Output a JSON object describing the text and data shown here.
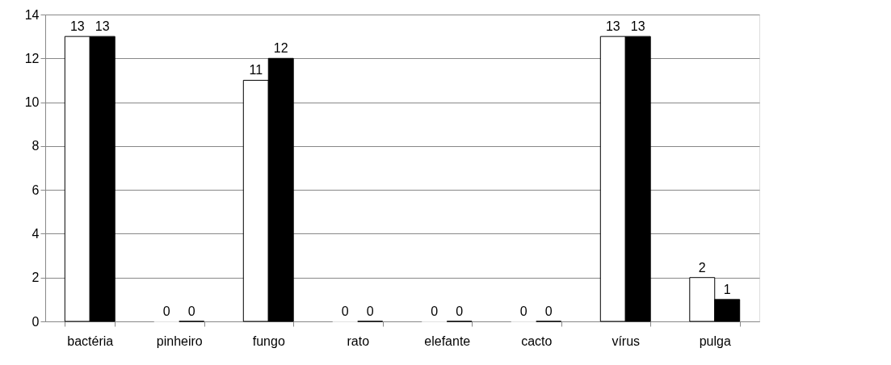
{
  "chart_data": {
    "type": "bar",
    "categories": [
      "bactéria",
      "pinheiro",
      "fungo",
      "rato",
      "elefante",
      "cacto",
      "vírus",
      "pulga"
    ],
    "series": [
      {
        "color": "#ffffff",
        "values": [
          13,
          0,
          11,
          0,
          0,
          0,
          13,
          2
        ]
      },
      {
        "color": "#000000",
        "values": [
          13,
          0,
          12,
          0,
          0,
          0,
          13,
          1
        ]
      }
    ],
    "ylim": [
      0,
      14
    ],
    "yticks": [
      0,
      2,
      4,
      6,
      8,
      10,
      12,
      14
    ],
    "grid": "y",
    "data_labels": true
  }
}
